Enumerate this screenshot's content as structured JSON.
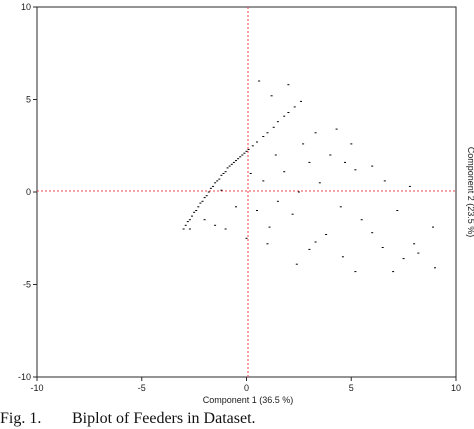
{
  "caption": {
    "label": "Fig. 1.",
    "text": "Biplot of Feeders in Dataset."
  },
  "chart_data": {
    "type": "scatter",
    "xlabel": "Component 1 (36.5 %)",
    "ylabel": "Component 2 (23.5 %)",
    "xlim": [
      -10,
      10
    ],
    "ylim": [
      -10,
      10
    ],
    "xticks": [
      -10,
      -5,
      0,
      5,
      10
    ],
    "yticks": [
      -10,
      -5,
      0,
      5,
      10
    ],
    "xtick_labels": [
      "-10",
      "-5",
      "0",
      "5",
      "10"
    ],
    "ytick_labels": [
      "-10",
      "-5",
      "0",
      "5",
      "10"
    ],
    "grid": false,
    "reference_lines": {
      "x": 0,
      "y": 0,
      "color": "#e8484d",
      "style": "dotted"
    },
    "marker_color": "#000000",
    "series": [
      {
        "values_note": "",
        "points": [
          [
            -3.0,
            -2.0
          ],
          [
            -2.9,
            -1.8
          ],
          [
            -2.8,
            -1.6
          ],
          [
            -2.7,
            -1.5
          ],
          [
            -2.6,
            -1.3
          ],
          [
            -2.5,
            -1.1
          ],
          [
            -2.4,
            -1.0
          ],
          [
            -2.3,
            -0.8
          ],
          [
            -2.2,
            -0.6
          ],
          [
            -2.1,
            -0.5
          ],
          [
            -2.0,
            -0.3
          ],
          [
            -1.9,
            -0.2
          ],
          [
            -1.8,
            0.0
          ],
          [
            -1.7,
            0.2
          ],
          [
            -1.6,
            0.3
          ],
          [
            -1.5,
            0.5
          ],
          [
            -1.4,
            0.6
          ],
          [
            -1.3,
            0.7
          ],
          [
            -1.2,
            0.9
          ],
          [
            -1.1,
            1.0
          ],
          [
            -1.0,
            1.1
          ],
          [
            -0.9,
            1.3
          ],
          [
            -0.8,
            1.4
          ],
          [
            -0.7,
            1.5
          ],
          [
            -0.6,
            1.6
          ],
          [
            -0.5,
            1.7
          ],
          [
            -0.4,
            1.8
          ],
          [
            -0.3,
            1.9
          ],
          [
            -0.2,
            2.0
          ],
          [
            -0.1,
            2.1
          ],
          [
            0.0,
            2.2
          ],
          [
            0.1,
            2.3
          ],
          [
            0.3,
            2.5
          ],
          [
            0.5,
            2.7
          ],
          [
            0.8,
            3.0
          ],
          [
            1.0,
            3.2
          ],
          [
            1.3,
            3.5
          ],
          [
            1.5,
            3.8
          ],
          [
            1.8,
            4.1
          ],
          [
            2.0,
            4.3
          ],
          [
            2.3,
            4.6
          ],
          [
            2.6,
            4.9
          ],
          [
            0.6,
            6.0
          ],
          [
            2.0,
            5.8
          ],
          [
            1.2,
            5.2
          ],
          [
            3.3,
            3.2
          ],
          [
            4.3,
            3.4
          ],
          [
            5.0,
            2.6
          ],
          [
            4.7,
            1.6
          ],
          [
            5.2,
            1.2
          ],
          [
            6.6,
            0.6
          ],
          [
            7.8,
            0.3
          ],
          [
            8.9,
            -1.9
          ],
          [
            8.0,
            -2.8
          ],
          [
            7.5,
            -3.6
          ],
          [
            9.0,
            -4.1
          ],
          [
            7.0,
            -4.3
          ],
          [
            5.2,
            -4.3
          ],
          [
            3.0,
            -3.1
          ],
          [
            2.4,
            -3.9
          ],
          [
            1.0,
            -2.8
          ],
          [
            0.0,
            -2.5
          ],
          [
            -1.0,
            -2.0
          ],
          [
            -1.5,
            -1.8
          ],
          [
            0.5,
            -1.0
          ],
          [
            1.5,
            -0.5
          ],
          [
            2.5,
            0.0
          ],
          [
            3.5,
            0.5
          ],
          [
            4.5,
            -0.8
          ],
          [
            5.5,
            -1.5
          ],
          [
            6.0,
            -2.2
          ],
          [
            6.5,
            -3.0
          ],
          [
            3.8,
            -2.3
          ],
          [
            2.2,
            -1.2
          ],
          [
            1.8,
            1.1
          ],
          [
            3.0,
            1.6
          ],
          [
            0.8,
            0.6
          ],
          [
            -0.5,
            -0.8
          ],
          [
            -2.0,
            -1.5
          ],
          [
            -2.7,
            -2.0
          ],
          [
            -1.2,
            0.1
          ],
          [
            0.2,
            1.0
          ],
          [
            1.4,
            2.0
          ],
          [
            2.7,
            2.6
          ],
          [
            4.0,
            2.0
          ],
          [
            6.0,
            1.4
          ],
          [
            7.2,
            -1.0
          ],
          [
            8.2,
            -3.3
          ],
          [
            4.6,
            -3.5
          ],
          [
            3.3,
            -2.7
          ],
          [
            1.1,
            -1.9
          ]
        ]
      }
    ]
  }
}
